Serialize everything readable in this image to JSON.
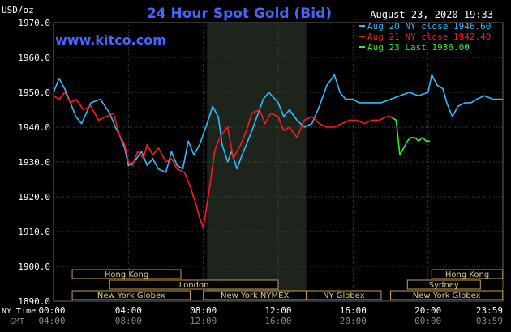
{
  "chart_data": {
    "type": "line",
    "title": "24 Hour Spot Gold (Bid)",
    "ylabel": "USD/oz",
    "timestamp": "August 23, 2020 19:33",
    "watermark": "www.kitco.com",
    "ylim": [
      1890,
      1970
    ],
    "yticks": [
      "1970.0",
      "1960.0",
      "1950.0",
      "1940.0",
      "1930.0",
      "1920.0",
      "1910.0",
      "1900.0",
      "1890.0"
    ],
    "xlim": [
      0,
      24
    ],
    "x_axis_label_primary": "NY Time",
    "x_axis_label_secondary": "GMT",
    "xticks_ny": [
      "00:00",
      "04:00",
      "08:00",
      "12:00",
      "16:00",
      "20:00",
      "23:59"
    ],
    "xticks_gmt": [
      "04:00",
      "08:00",
      "12:00",
      "16:00",
      "20:00",
      "00:00",
      "03:59"
    ],
    "shaded_session_hours": [
      8.2,
      13.5
    ],
    "legend_position": "top-right",
    "series": [
      {
        "name": "Aug 20 NY close 1946.60",
        "color": "#33bbff",
        "x": [
          0,
          0.3,
          0.6,
          0.9,
          1.2,
          1.5,
          2,
          2.5,
          3,
          3.3,
          3.5,
          3.8,
          4,
          4.3,
          4.7,
          5,
          5.3,
          5.6,
          6,
          6.3,
          6.6,
          6.9,
          7.2,
          7.5,
          7.8,
          8,
          8.2,
          8.5,
          8.8,
          9,
          9.3,
          9.5,
          9.8,
          10,
          10.3,
          10.6,
          11,
          11.2,
          11.5,
          12,
          12.3,
          12.6,
          13,
          13.4,
          13.8,
          14.2,
          14.6,
          15,
          15.3,
          15.6,
          16,
          16.3,
          16.6,
          17,
          17.5,
          18,
          18.5,
          19,
          19.5,
          20,
          20.2,
          20.5,
          20.8,
          21,
          21.3,
          21.6,
          22,
          22.3,
          22.6,
          23,
          23.5,
          23.99
        ],
        "values": [
          1950,
          1954,
          1951,
          1947,
          1943,
          1941,
          1947,
          1948,
          1944,
          1940,
          1938,
          1934,
          1929,
          1930,
          1933,
          1929,
          1931,
          1928,
          1927,
          1933,
          1929,
          1928,
          1936,
          1932,
          1935,
          1938,
          1941,
          1946,
          1943,
          1935,
          1930,
          1933,
          1928,
          1931,
          1935,
          1939,
          1945,
          1948,
          1950,
          1947,
          1943,
          1945,
          1942,
          1940,
          1941,
          1946,
          1952,
          1955,
          1950,
          1948,
          1948,
          1947,
          1947,
          1947,
          1947,
          1948,
          1949,
          1950,
          1949,
          1950,
          1955,
          1952,
          1951,
          1947,
          1943,
          1946,
          1947,
          1947,
          1948,
          1949,
          1948,
          1948
        ]
      },
      {
        "name": "Aug 21 NY close 1942.40",
        "color": "#ff1a1a",
        "x": [
          0,
          0.3,
          0.6,
          0.9,
          1.2,
          1.6,
          2,
          2.4,
          2.8,
          3.2,
          3.5,
          3.8,
          4,
          4.2,
          4.5,
          4.8,
          5,
          5.3,
          5.6,
          6,
          6.3,
          6.6,
          7,
          7.3,
          7.6,
          7.8,
          8,
          8.2,
          8.4,
          8.6,
          8.8,
          9,
          9.3,
          9.6,
          10,
          10.3,
          10.6,
          11,
          11.3,
          11.6,
          12,
          12.3,
          12.6,
          13,
          13.4,
          13.8,
          14.2,
          14.6,
          15,
          15.4,
          15.8,
          16.2,
          16.6,
          17,
          17.4,
          17.8,
          18
        ],
        "values": [
          1949,
          1948,
          1950,
          1947,
          1948,
          1945,
          1946,
          1942,
          1943,
          1944,
          1938,
          1935,
          1930,
          1929,
          1933,
          1931,
          1935,
          1932,
          1934,
          1930,
          1931,
          1928,
          1927,
          1923,
          1918,
          1914,
          1911,
          1918,
          1925,
          1933,
          1936,
          1938,
          1940,
          1931,
          1935,
          1939,
          1944,
          1945,
          1941,
          1944,
          1943,
          1939,
          1940,
          1937,
          1942,
          1943,
          1941,
          1940,
          1940,
          1941,
          1942,
          1942,
          1941,
          1942,
          1942,
          1943,
          1943
        ]
      },
      {
        "name": "Aug 23 Last 1936.00",
        "color": "#33ee33",
        "x": [
          18,
          18.3,
          18.5,
          18.7,
          18.9,
          19.1,
          19.3,
          19.5,
          19.7,
          19.9,
          20.1
        ],
        "values": [
          1943,
          1942,
          1932,
          1934,
          1936,
          1937,
          1937,
          1936,
          1937,
          1936,
          1936
        ]
      }
    ],
    "market_sessions": [
      {
        "name": "Hong Kong",
        "start": 1.0,
        "end": 6.8,
        "row": 0
      },
      {
        "name": "London",
        "start": 3.0,
        "end": 12.0,
        "row": 1
      },
      {
        "name": "New York Globex",
        "start": 1.0,
        "end": 7.3,
        "row": 2
      },
      {
        "name": "New York NYMEX",
        "start": 8.0,
        "end": 13.5,
        "row": 2
      },
      {
        "name": "NY Globex",
        "start": 13.5,
        "end": 17.5,
        "row": 2
      },
      {
        "name": "Hong Kong",
        "start": 20.2,
        "end": 23.99,
        "row": 0
      },
      {
        "name": "Sydney",
        "start": 18.9,
        "end": 22.8,
        "row": 1
      },
      {
        "name": "New York Globex",
        "start": 18.0,
        "end": 23.99,
        "row": 2
      }
    ]
  }
}
